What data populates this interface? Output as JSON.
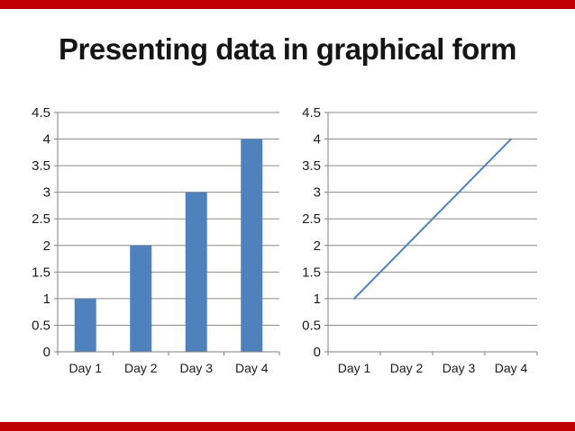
{
  "slide": {
    "title": "Presenting data in graphical form",
    "accent_color": "#c00000",
    "background_color": "#ffffff",
    "title_color": "#151515"
  },
  "chart_data": [
    {
      "type": "bar",
      "title": "",
      "categories": [
        "Day 1",
        "Day 2",
        "Day 3",
        "Day 4"
      ],
      "values": [
        1,
        2,
        3,
        4
      ],
      "xlabel": "",
      "ylabel": "",
      "ylim": [
        0,
        4.5
      ],
      "ytick_step": 0.5,
      "ytick_labels": [
        "0",
        "0.5",
        "1",
        "1.5",
        "2",
        "2.5",
        "3",
        "3.5",
        "4",
        "4.5"
      ],
      "grid": "horizontal",
      "legend": "none",
      "series_color": "#4f81bd",
      "axis_color": "#7f7f7f",
      "gridline_color": "#8c8c8c",
      "label_color": "#1a1a1a"
    },
    {
      "type": "line",
      "title": "",
      "categories": [
        "Day 1",
        "Day 2",
        "Day 3",
        "Day 4"
      ],
      "values": [
        1,
        2,
        3,
        4
      ],
      "xlabel": "",
      "ylabel": "",
      "ylim": [
        0,
        4.5
      ],
      "ytick_step": 0.5,
      "ytick_labels": [
        "0",
        "0.5",
        "1",
        "1.5",
        "2",
        "2.5",
        "3",
        "3.5",
        "4",
        "4.5"
      ],
      "grid": "horizontal",
      "legend": "none",
      "series_color": "#4f81bd",
      "axis_color": "#7f7f7f",
      "gridline_color": "#8c8c8c",
      "label_color": "#1a1a1a"
    }
  ]
}
